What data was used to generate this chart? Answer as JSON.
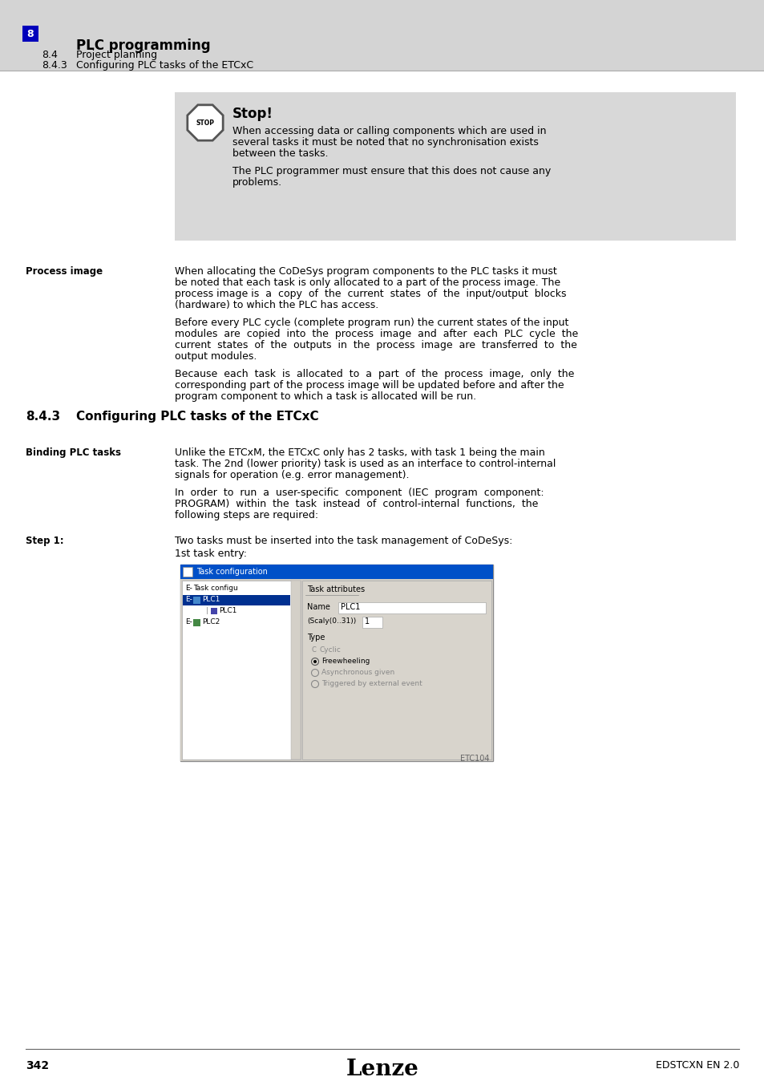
{
  "page_bg": "#e0e0e0",
  "header_bg": "#d4d4d4",
  "stop_box_bg": "#d8d8d8",
  "header_num": "8",
  "header_title": "PLC programming",
  "header_sub1_num": "8.4",
  "header_sub1": "Project planning",
  "header_sub2_num": "8.4.3",
  "header_sub2": "Configuring PLC tasks of the ETCxC",
  "stop_title": "Stop!",
  "stop_lines": [
    "When accessing data or calling components which are used in",
    "several tasks it must be noted that no synchronisation exists",
    "between the tasks.",
    "The PLC programmer must ensure that this does not cause any",
    "problems."
  ],
  "label_process_image": "Process image",
  "para1": [
    "When allocating the CoDeSys program components to the PLC tasks it must",
    "be noted that each task is only allocated to a part of the process image. The",
    "process image is  a  copy  of  the  current  states  of  the  input/output  blocks",
    "(hardware) to which the PLC has access."
  ],
  "para2": [
    "Before every PLC cycle (complete program run) the current states of the input",
    "modules  are  copied  into  the  process  image  and  after  each  PLC  cycle  the",
    "current  states  of  the  outputs  in  the  process  image  are  transferred  to  the",
    "output modules."
  ],
  "para3": [
    "Because  each  task  is  allocated  to  a  part  of  the  process  image,  only  the",
    "corresponding part of the process image will be updated before and after the",
    "program component to which a task is allocated will be run."
  ],
  "section_num": "8.4.3",
  "section_title": "Configuring PLC tasks of the ETCxC",
  "label_binding": "Binding PLC tasks",
  "binding_para1": [
    "Unlike the ETCxM, the ETCxC only has 2 tasks, with task 1 being the main",
    "task. The 2nd (lower priority) task is used as an interface to control-internal",
    "signals for operation (e.g. error management)."
  ],
  "binding_para2": [
    "In  order  to  run  a  user-specific  component  (IEC  program  component:",
    "PROGRAM)  within  the  task  instead  of  control-internal  functions,  the",
    "following steps are required:"
  ],
  "label_step1": "Step 1:",
  "step1_line1": "Two tasks must be inserted into the task management of CoDeSys:",
  "step1_line2": "1st task entry:",
  "screenshot_label": "ETC104",
  "footer_page": "342",
  "footer_brand": "Lenze",
  "footer_right": "EDSTCXN EN 2.0"
}
